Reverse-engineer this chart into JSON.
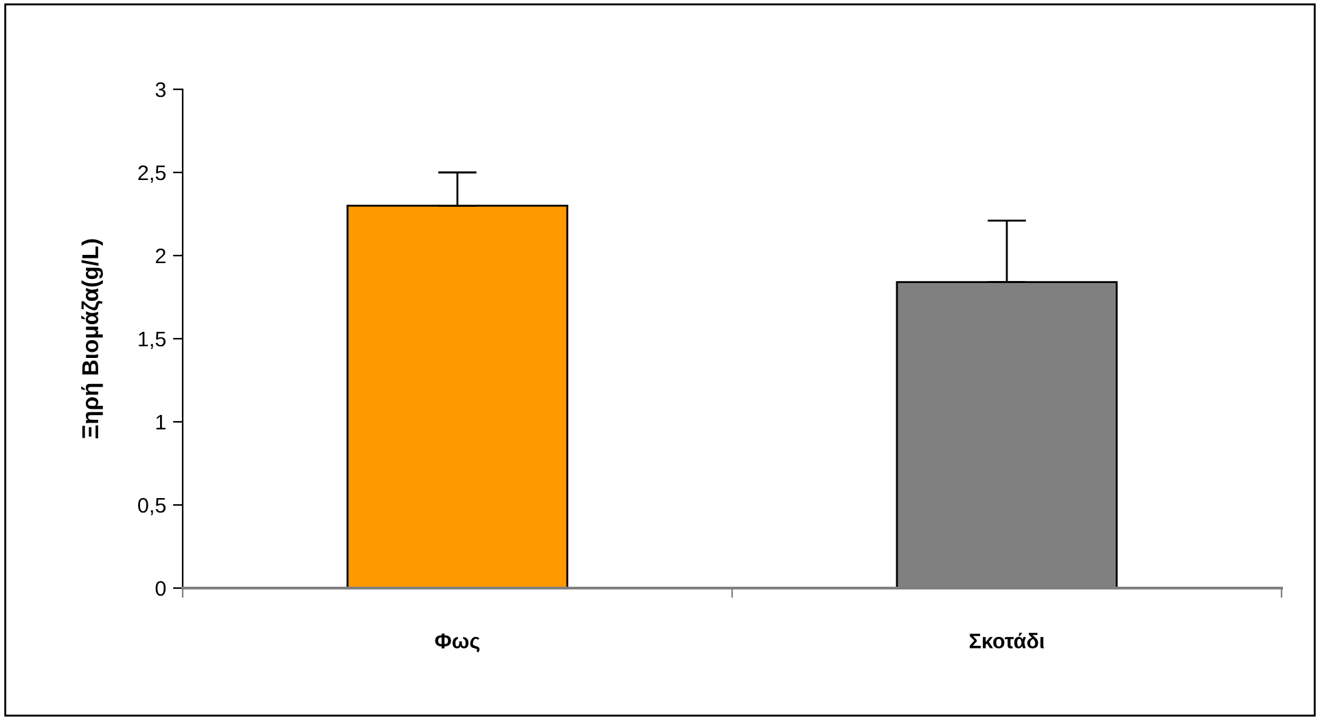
{
  "chart_data": {
    "type": "bar",
    "ylabel": "Ξηρή Βιομάζα(g/L)",
    "categories": [
      "Φως",
      "Σκοτάδι"
    ],
    "values": [
      2.3,
      1.84
    ],
    "colors": [
      "#ff9900",
      "#808080"
    ],
    "errors": [
      [
        2.3,
        2.5
      ],
      [
        1.84,
        2.21
      ]
    ],
    "ylim": [
      0,
      3
    ],
    "yticks": [
      0,
      {
        "value": 0.5,
        "label": "0,5"
      },
      1,
      {
        "value": 1.5,
        "label": "1,5"
      },
      2,
      {
        "value": 2.5,
        "label": "2,5"
      },
      3
    ],
    "grid": false,
    "legend": false
  }
}
